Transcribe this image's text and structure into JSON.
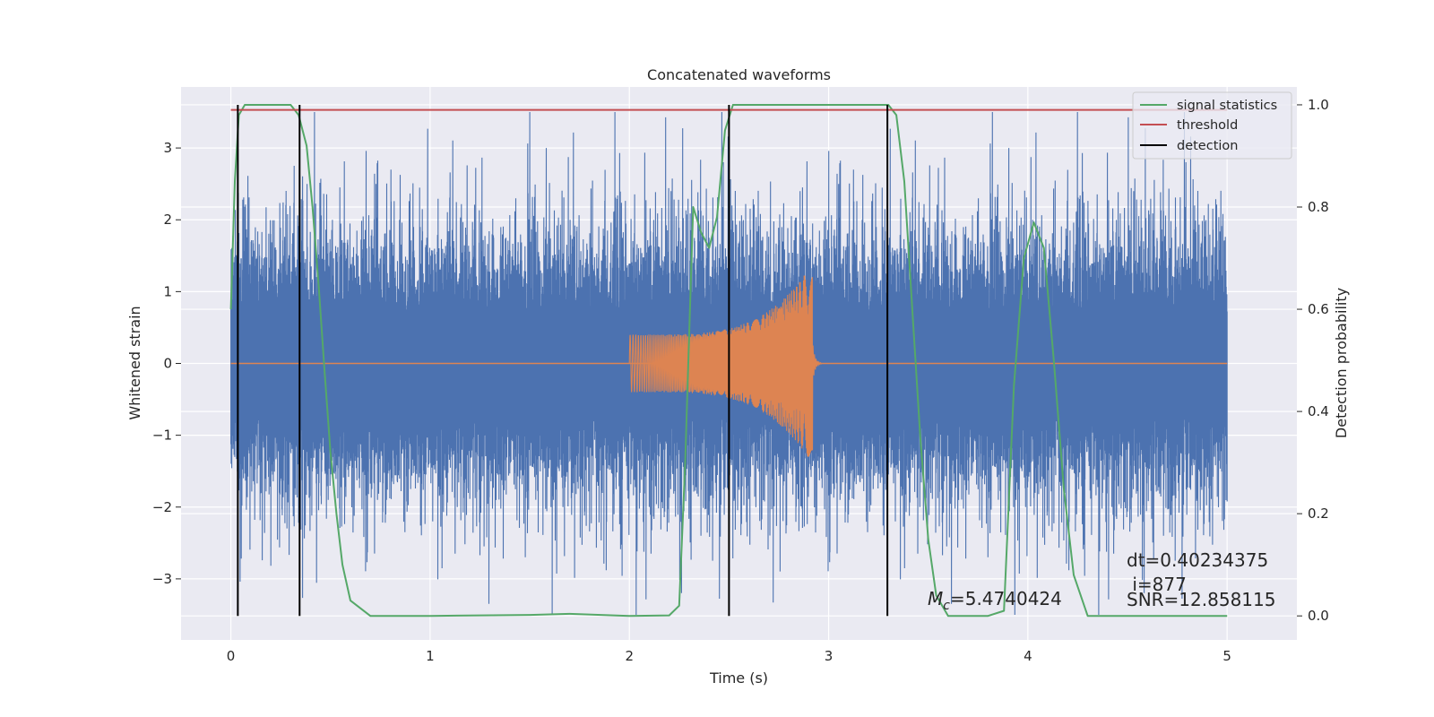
{
  "chart_data": {
    "type": "line",
    "title": "Concatenated waveforms",
    "xlabel": "Time (s)",
    "ylabel": "Whitened strain",
    "ylabel_right": "Detection probability",
    "xlim": [
      -0.25,
      5.35
    ],
    "ylim": [
      -3.85,
      3.85
    ],
    "ylim_right": [
      -0.047,
      1.035
    ],
    "x_ticks": [
      0,
      1,
      2,
      3,
      4,
      5
    ],
    "y_ticks": [
      -3,
      -2,
      -1,
      0,
      1,
      2,
      3
    ],
    "y_right_ticks": [
      0.0,
      0.2,
      0.4,
      0.6,
      0.8,
      1.0
    ],
    "x_tick_labels": [
      "0",
      "1",
      "2",
      "3",
      "4",
      "5"
    ],
    "y_tick_labels": [
      "−3",
      "−2",
      "−1",
      "0",
      "1",
      "2",
      "3"
    ],
    "y_right_tick_labels": [
      "0.0",
      "0.2",
      "0.4",
      "0.6",
      "0.8",
      "1.0"
    ],
    "grid": true,
    "legend_placement": "upper right",
    "colors": {
      "background": "#eaeaf2",
      "grid": "#ffffff",
      "strain": "#4c72b0",
      "template": "#dd8452",
      "signal_statistics": "#55a868",
      "threshold": "#c44e52",
      "detection": "#000000"
    },
    "series": [
      {
        "name": "",
        "axis": "left",
        "kind": "noise",
        "x_range": [
          0,
          5
        ],
        "envelope_typical": 0.7,
        "envelope_peak": 3.5
      },
      {
        "name": "",
        "axis": "left",
        "kind": "chirp",
        "x_range": [
          2.0,
          2.92
        ],
        "amplitude_start": 0.4,
        "amplitude_end": 1.4
      },
      {
        "name": "signal statistics",
        "axis": "right",
        "x": [
          0.0,
          0.02,
          0.04,
          0.07,
          0.1,
          0.2,
          0.3,
          0.34,
          0.38,
          0.41,
          0.44,
          0.47,
          0.5,
          0.53,
          0.56,
          0.6,
          0.7,
          1.0,
          1.5,
          1.7,
          2.0,
          2.2,
          2.25,
          2.28,
          2.32,
          2.36,
          2.4,
          2.44,
          2.48,
          2.52,
          2.56,
          2.6,
          2.8,
          3.0,
          3.3,
          3.34,
          3.38,
          3.42,
          3.46,
          3.5,
          3.54,
          3.6,
          3.7,
          3.8,
          3.88,
          3.93,
          3.98,
          4.03,
          4.08,
          4.13,
          4.18,
          4.23,
          4.3,
          4.5,
          5.0
        ],
        "y": [
          0.6,
          0.85,
          0.98,
          1.0,
          1.0,
          1.0,
          1.0,
          0.98,
          0.92,
          0.8,
          0.65,
          0.48,
          0.32,
          0.2,
          0.1,
          0.03,
          0.0,
          0.0,
          0.002,
          0.004,
          0.0,
          0.001,
          0.02,
          0.3,
          0.8,
          0.75,
          0.72,
          0.78,
          0.95,
          1.0,
          1.0,
          1.0,
          1.0,
          1.0,
          1.0,
          0.98,
          0.85,
          0.6,
          0.35,
          0.15,
          0.04,
          0.0,
          0.0,
          0.0,
          0.01,
          0.45,
          0.7,
          0.77,
          0.72,
          0.5,
          0.25,
          0.08,
          0.0,
          0.0,
          0.0
        ]
      },
      {
        "name": "threshold",
        "axis": "right",
        "x": [
          0,
          5
        ],
        "y": [
          0.99,
          0.99
        ]
      },
      {
        "name": "detection",
        "axis": "right",
        "kind": "vertical_lines",
        "x": [
          0.035,
          0.345,
          2.5,
          3.295
        ],
        "y_range": [
          0.0,
          1.0
        ]
      }
    ],
    "annotations": [
      {
        "text_math": "M",
        "text_sub": "c",
        "text": "=5.4740424"
      },
      {
        "text": "dt=0.40234375"
      },
      {
        "text": " i=877"
      },
      {
        "text": "SNR=12.858115"
      }
    ]
  }
}
